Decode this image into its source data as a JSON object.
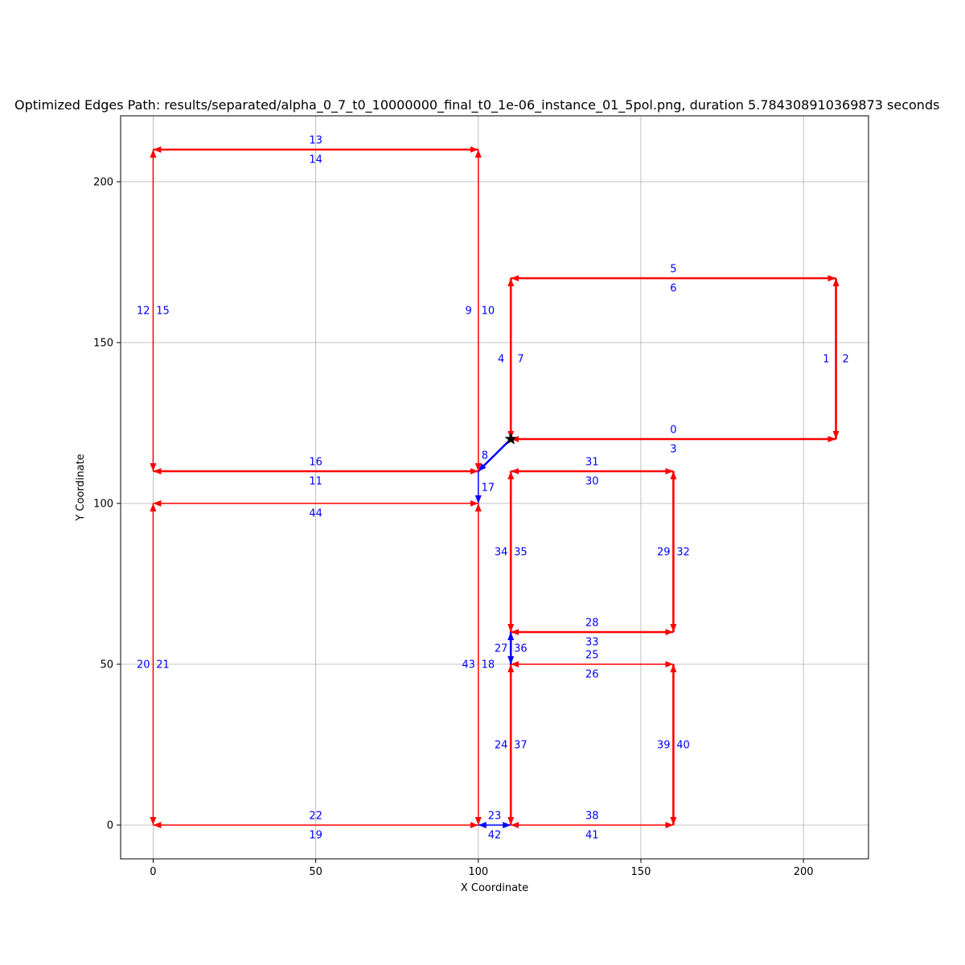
{
  "chart_data": {
    "type": "network",
    "title": "Optimized Edges Path: results/separated/alpha_0_7_t0_10000000_final_t0_1e-06_instance_01_5pol.png, duration 5.784308910369873 seconds",
    "xlabel": "X Coordinate",
    "ylabel": "Y Coordinate",
    "xlim": [
      -10,
      220
    ],
    "ylim": [
      -10.5,
      220.5
    ],
    "xticks": [
      0,
      50,
      100,
      150,
      200
    ],
    "yticks": [
      0,
      50,
      100,
      150,
      200
    ],
    "grid": true,
    "colors": {
      "path": "#ff0000",
      "transit": "#0000ff",
      "label": "#0000ff",
      "start": "#000000"
    },
    "start_point": {
      "x": 110,
      "y": 120,
      "marker": "star"
    },
    "edges": [
      {
        "from": [
          110,
          120
        ],
        "to": [
          210,
          120
        ],
        "color": "red",
        "bold": true
      },
      {
        "from": [
          210,
          120
        ],
        "to": [
          210,
          170
        ],
        "color": "red",
        "bold": true
      },
      {
        "from": [
          110,
          170
        ],
        "to": [
          210,
          170
        ],
        "color": "red",
        "bold": true
      },
      {
        "from": [
          110,
          120
        ],
        "to": [
          110,
          170
        ],
        "color": "red",
        "bold": true
      },
      {
        "from": [
          110,
          120
        ],
        "to": [
          100,
          110
        ],
        "color": "blue",
        "bold": true,
        "head": "end"
      },
      {
        "from": [
          100,
          110
        ],
        "to": [
          100,
          210
        ],
        "color": "red",
        "bold": false
      },
      {
        "from": [
          0,
          210
        ],
        "to": [
          100,
          210
        ],
        "color": "red",
        "bold": true
      },
      {
        "from": [
          0,
          110
        ],
        "to": [
          0,
          210
        ],
        "color": "red",
        "bold": false
      },
      {
        "from": [
          0,
          110
        ],
        "to": [
          100,
          110
        ],
        "color": "red",
        "bold": true
      },
      {
        "from": [
          100,
          110
        ],
        "to": [
          100,
          100
        ],
        "color": "blue",
        "bold": false,
        "head": "end"
      },
      {
        "from": [
          0,
          100
        ],
        "to": [
          100,
          100
        ],
        "color": "red",
        "bold": false
      },
      {
        "from": [
          100,
          0
        ],
        "to": [
          100,
          100
        ],
        "color": "red",
        "bold": false
      },
      {
        "from": [
          0,
          0
        ],
        "to": [
          0,
          100
        ],
        "color": "red",
        "bold": false
      },
      {
        "from": [
          0,
          0
        ],
        "to": [
          100,
          0
        ],
        "color": "red",
        "bold": false
      },
      {
        "from": [
          100,
          0
        ],
        "to": [
          110,
          0
        ],
        "color": "blue",
        "bold": false,
        "head": "both"
      },
      {
        "from": [
          110,
          0
        ],
        "to": [
          110,
          50
        ],
        "color": "red",
        "bold": true
      },
      {
        "from": [
          110,
          50
        ],
        "to": [
          160,
          50
        ],
        "color": "red",
        "bold": false
      },
      {
        "from": [
          110,
          50
        ],
        "to": [
          110,
          60
        ],
        "color": "blue",
        "bold": true,
        "head": "both"
      },
      {
        "from": [
          110,
          60
        ],
        "to": [
          160,
          60
        ],
        "color": "red",
        "bold": true
      },
      {
        "from": [
          160,
          60
        ],
        "to": [
          160,
          110
        ],
        "color": "red",
        "bold": true
      },
      {
        "from": [
          110,
          110
        ],
        "to": [
          160,
          110
        ],
        "color": "red",
        "bold": true
      },
      {
        "from": [
          110,
          60
        ],
        "to": [
          110,
          110
        ],
        "color": "red",
        "bold": true
      },
      {
        "from": [
          110,
          0
        ],
        "to": [
          160,
          0
        ],
        "color": "red",
        "bold": false
      },
      {
        "from": [
          160,
          0
        ],
        "to": [
          160,
          50
        ],
        "color": "red",
        "bold": true
      }
    ],
    "labels": [
      {
        "text": "0",
        "x": 160,
        "y": 123
      },
      {
        "text": "3",
        "x": 160,
        "y": 117
      },
      {
        "text": "1",
        "x": 207,
        "y": 145
      },
      {
        "text": "2",
        "x": 213,
        "y": 145
      },
      {
        "text": "5",
        "x": 160,
        "y": 173
      },
      {
        "text": "6",
        "x": 160,
        "y": 167
      },
      {
        "text": "4",
        "x": 107,
        "y": 145
      },
      {
        "text": "7",
        "x": 113,
        "y": 145
      },
      {
        "text": "8",
        "x": 102,
        "y": 115
      },
      {
        "text": "9",
        "x": 97,
        "y": 160
      },
      {
        "text": "10",
        "x": 103,
        "y": 160
      },
      {
        "text": "13",
        "x": 50,
        "y": 213
      },
      {
        "text": "14",
        "x": 50,
        "y": 207
      },
      {
        "text": "12",
        "x": -3,
        "y": 160
      },
      {
        "text": "15",
        "x": 3,
        "y": 160
      },
      {
        "text": "16",
        "x": 50,
        "y": 113
      },
      {
        "text": "11",
        "x": 50,
        "y": 107
      },
      {
        "text": "17",
        "x": 103,
        "y": 105
      },
      {
        "text": "44",
        "x": 50,
        "y": 97
      },
      {
        "text": "43",
        "x": 97,
        "y": 50
      },
      {
        "text": "18",
        "x": 103,
        "y": 50
      },
      {
        "text": "20",
        "x": -3,
        "y": 50
      },
      {
        "text": "21",
        "x": 3,
        "y": 50
      },
      {
        "text": "22",
        "x": 50,
        "y": 3
      },
      {
        "text": "19",
        "x": 50,
        "y": -3
      },
      {
        "text": "23",
        "x": 105,
        "y": 3
      },
      {
        "text": "42",
        "x": 105,
        "y": -3
      },
      {
        "text": "24",
        "x": 107,
        "y": 25
      },
      {
        "text": "37",
        "x": 113,
        "y": 25
      },
      {
        "text": "25",
        "x": 135,
        "y": 53
      },
      {
        "text": "26",
        "x": 135,
        "y": 47
      },
      {
        "text": "27",
        "x": 107,
        "y": 55
      },
      {
        "text": "36",
        "x": 113,
        "y": 55
      },
      {
        "text": "28",
        "x": 135,
        "y": 63
      },
      {
        "text": "33",
        "x": 135,
        "y": 57
      },
      {
        "text": "29",
        "x": 157,
        "y": 85
      },
      {
        "text": "32",
        "x": 163,
        "y": 85
      },
      {
        "text": "31",
        "x": 135,
        "y": 113
      },
      {
        "text": "30",
        "x": 135,
        "y": 107
      },
      {
        "text": "34",
        "x": 107,
        "y": 85
      },
      {
        "text": "35",
        "x": 113,
        "y": 85
      },
      {
        "text": "38",
        "x": 135,
        "y": 3
      },
      {
        "text": "41",
        "x": 135,
        "y": -3
      },
      {
        "text": "39",
        "x": 157,
        "y": 25
      },
      {
        "text": "40",
        "x": 163,
        "y": 25
      }
    ]
  }
}
